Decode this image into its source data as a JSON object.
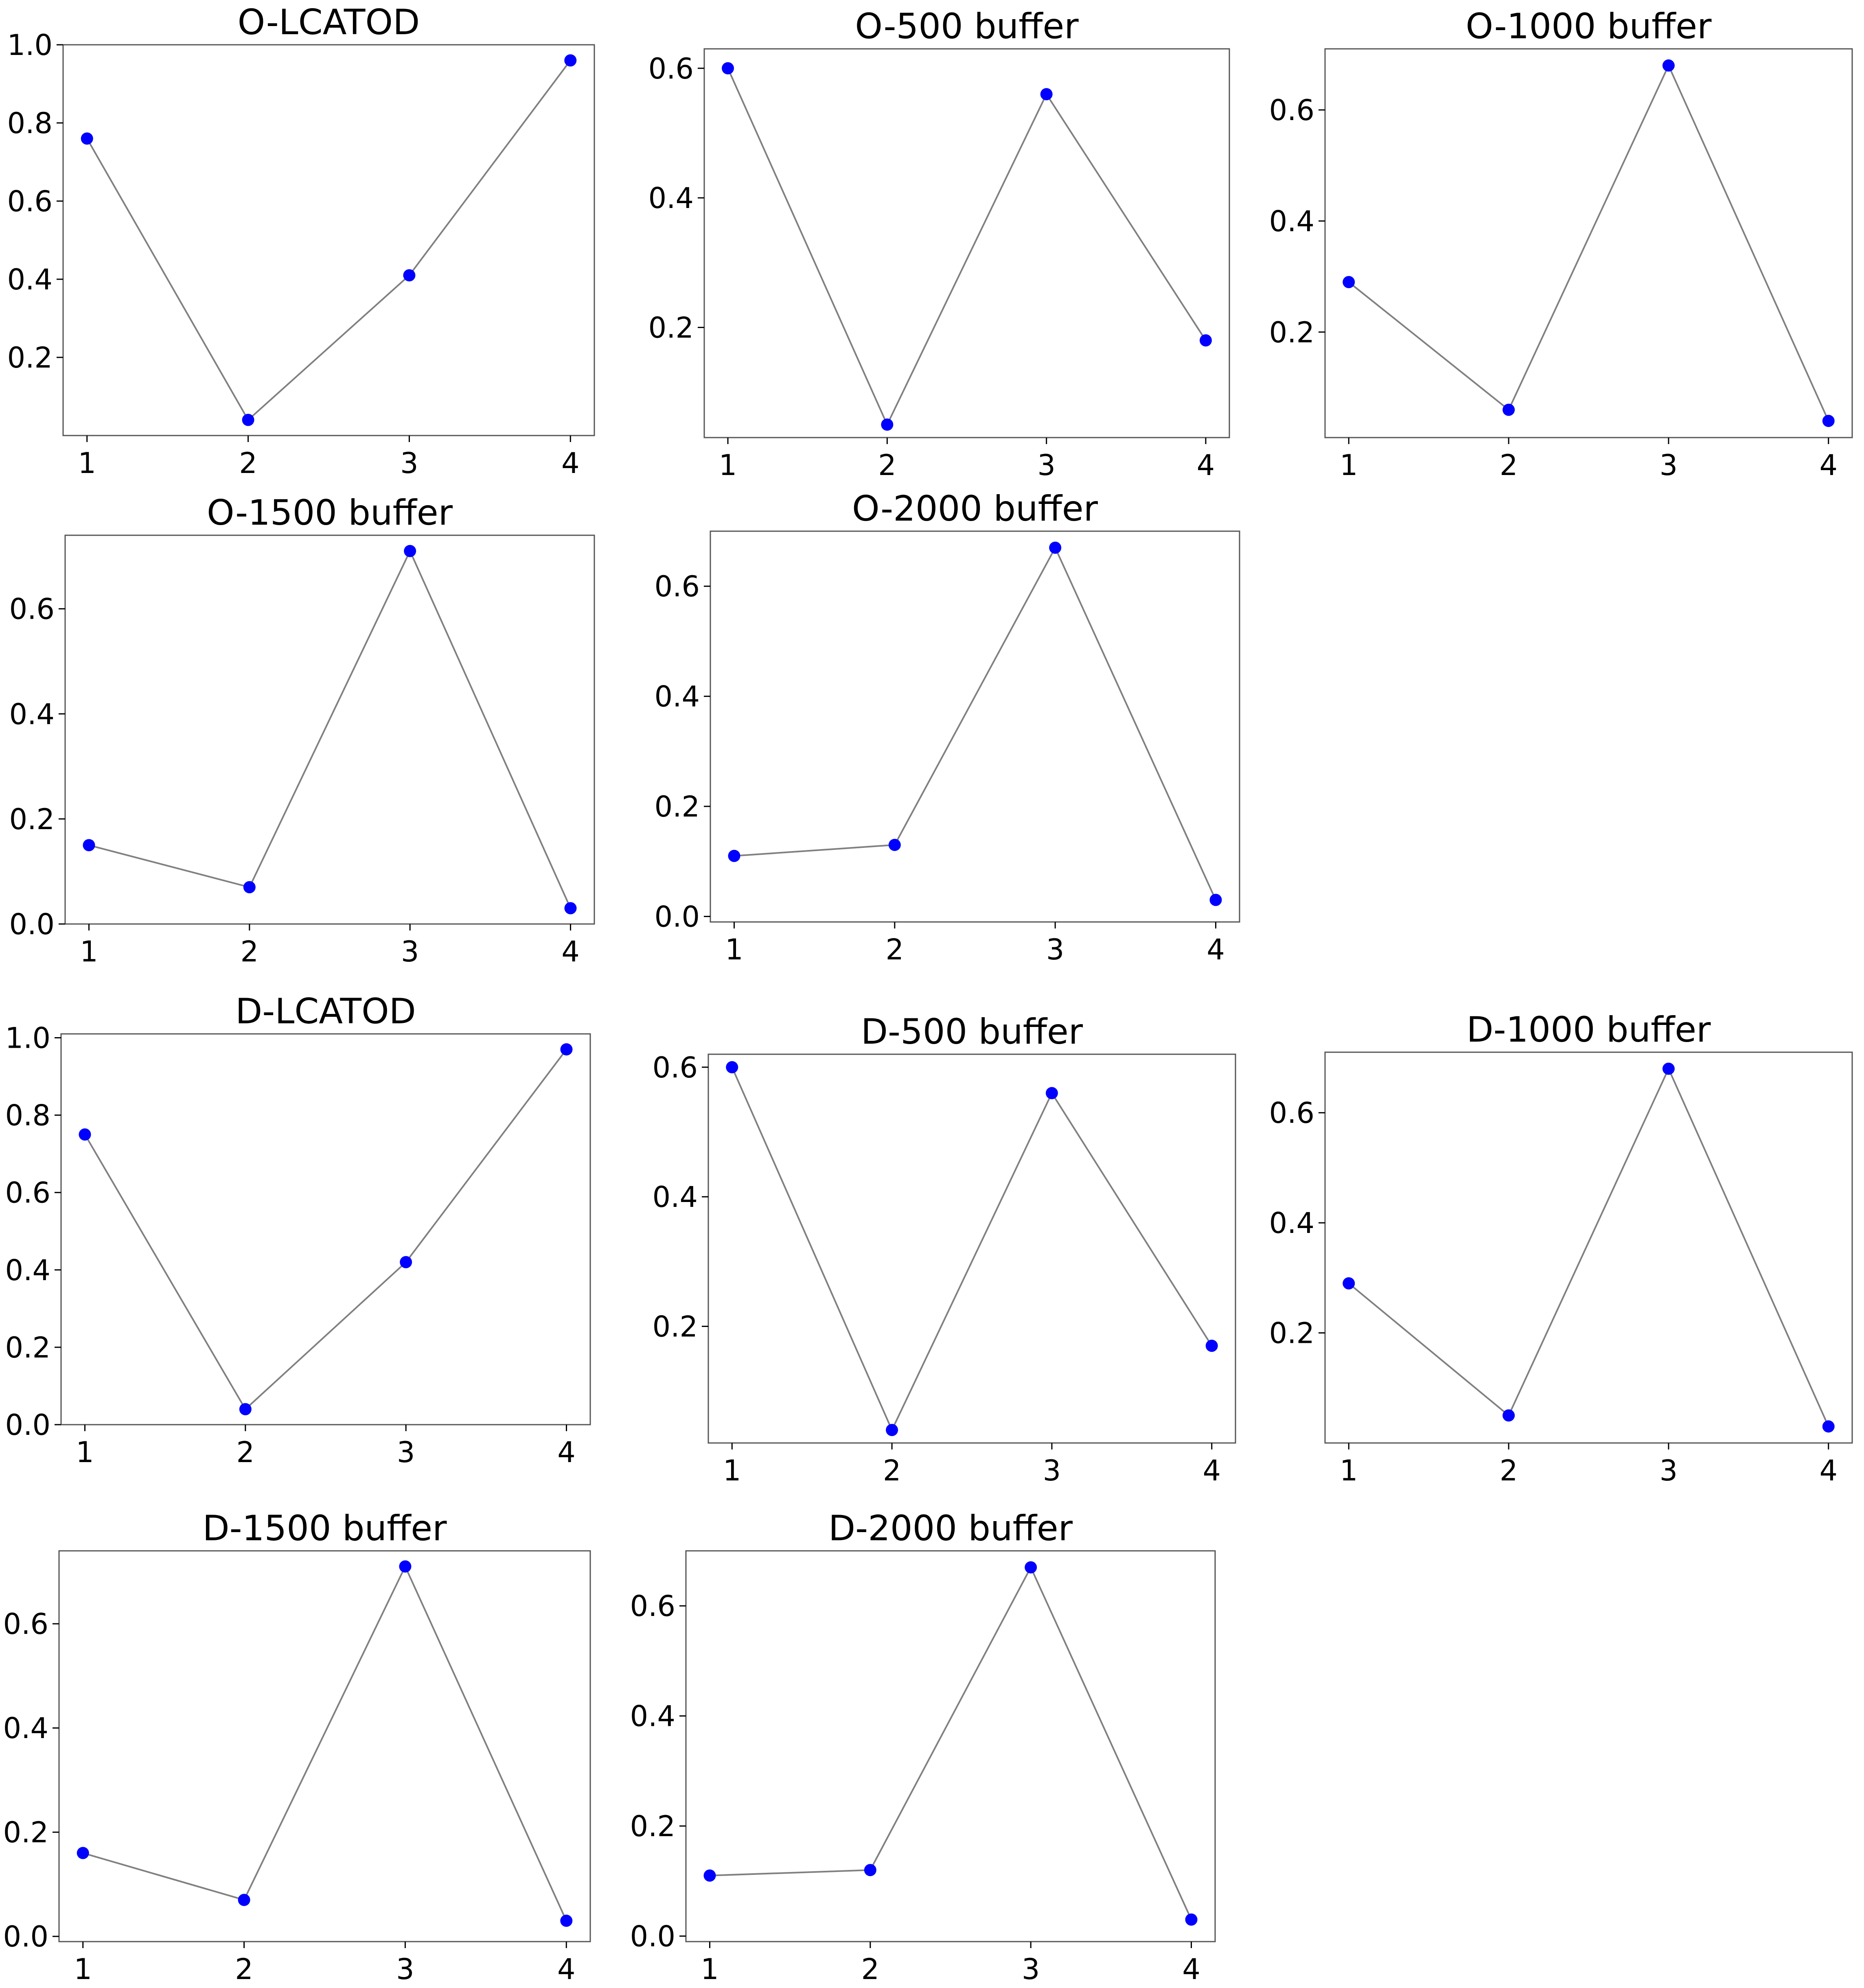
{
  "chart_data": [
    {
      "type": "line",
      "title": "O-LCATOD",
      "categories": [
        "1",
        "2",
        "3",
        "4"
      ],
      "values": [
        0.76,
        0.04,
        0.41,
        0.96
      ],
      "ylim": [
        0.0,
        1.0
      ],
      "yticks": [
        "1.0",
        "0.8",
        "0.6",
        "0.4",
        "0.2"
      ],
      "ytick_values": [
        1.0,
        0.8,
        0.6,
        0.4,
        0.2
      ],
      "grid": false,
      "marker_color": "#0000ff",
      "line_color": "#808080"
    },
    {
      "type": "line",
      "title": "O-500 buffer",
      "categories": [
        "1",
        "2",
        "3",
        "4"
      ],
      "values": [
        0.6,
        0.05,
        0.56,
        0.18
      ],
      "ylim": [
        0.03,
        0.63
      ],
      "yticks": [
        "0.6",
        "0.4",
        "0.2"
      ],
      "ytick_values": [
        0.6,
        0.4,
        0.2
      ],
      "grid": false,
      "marker_color": "#0000ff",
      "line_color": "#808080"
    },
    {
      "type": "line",
      "title": "O-1000 buffer",
      "categories": [
        "1",
        "2",
        "3",
        "4"
      ],
      "values": [
        0.29,
        0.06,
        0.68,
        0.04
      ],
      "ylim": [
        0.01,
        0.71
      ],
      "yticks": [
        "0.6",
        "0.4",
        "0.2"
      ],
      "ytick_values": [
        0.6,
        0.4,
        0.2
      ],
      "grid": false,
      "marker_color": "#0000ff",
      "line_color": "#808080"
    },
    {
      "type": "line",
      "title": "O-1500 buffer",
      "categories": [
        "1",
        "2",
        "3",
        "4"
      ],
      "values": [
        0.15,
        0.07,
        0.71,
        0.03
      ],
      "ylim": [
        0.0,
        0.74
      ],
      "yticks": [
        "0.6",
        "0.4",
        "0.2",
        "0.0"
      ],
      "ytick_values": [
        0.6,
        0.4,
        0.2,
        0.0
      ],
      "grid": false,
      "marker_color": "#0000ff",
      "line_color": "#808080"
    },
    {
      "type": "line",
      "title": "O-2000 buffer",
      "categories": [
        "1",
        "2",
        "3",
        "4"
      ],
      "values": [
        0.11,
        0.13,
        0.67,
        0.03
      ],
      "ylim": [
        -0.01,
        0.7
      ],
      "yticks": [
        "0.6",
        "0.4",
        "0.2",
        "0.0"
      ],
      "ytick_values": [
        0.6,
        0.4,
        0.2,
        0.0
      ],
      "grid": false,
      "marker_color": "#0000ff",
      "line_color": "#808080"
    },
    {
      "type": "line",
      "title": "D-LCATOD",
      "categories": [
        "1",
        "2",
        "3",
        "4"
      ],
      "values": [
        0.75,
        0.04,
        0.42,
        0.97
      ],
      "ylim": [
        0.0,
        1.01
      ],
      "yticks": [
        "1.0",
        "0.8",
        "0.6",
        "0.4",
        "0.2",
        "0.0"
      ],
      "ytick_values": [
        1.0,
        0.8,
        0.6,
        0.4,
        0.2,
        0.0
      ],
      "grid": false,
      "marker_color": "#0000ff",
      "line_color": "#808080"
    },
    {
      "type": "line",
      "title": "D-500 buffer",
      "categories": [
        "1",
        "2",
        "3",
        "4"
      ],
      "values": [
        0.6,
        0.04,
        0.56,
        0.17
      ],
      "ylim": [
        0.02,
        0.62
      ],
      "yticks": [
        "0.6",
        "0.4",
        "0.2"
      ],
      "ytick_values": [
        0.6,
        0.4,
        0.2
      ],
      "grid": false,
      "marker_color": "#0000ff",
      "line_color": "#808080"
    },
    {
      "type": "line",
      "title": "D-1000 buffer",
      "categories": [
        "1",
        "2",
        "3",
        "4"
      ],
      "values": [
        0.29,
        0.05,
        0.68,
        0.03
      ],
      "ylim": [
        0.0,
        0.71
      ],
      "yticks": [
        "0.6",
        "0.4",
        "0.2"
      ],
      "ytick_values": [
        0.6,
        0.4,
        0.2
      ],
      "grid": false,
      "marker_color": "#0000ff",
      "line_color": "#808080"
    },
    {
      "type": "line",
      "title": "D-1500 buffer",
      "categories": [
        "1",
        "2",
        "3",
        "4"
      ],
      "values": [
        0.16,
        0.07,
        0.71,
        0.03
      ],
      "ylim": [
        -0.01,
        0.74
      ],
      "yticks": [
        "0.6",
        "0.4",
        "0.2",
        "0.0"
      ],
      "ytick_values": [
        0.6,
        0.4,
        0.2,
        0.0
      ],
      "grid": false,
      "marker_color": "#0000ff",
      "line_color": "#808080"
    },
    {
      "type": "line",
      "title": "D-2000 buffer",
      "categories": [
        "1",
        "2",
        "3",
        "4"
      ],
      "values": [
        0.11,
        0.12,
        0.67,
        0.03
      ],
      "ylim": [
        -0.01,
        0.7
      ],
      "yticks": [
        "0.6",
        "0.4",
        "0.2",
        "0.0"
      ],
      "ytick_values": [
        0.6,
        0.4,
        0.2,
        0.0
      ],
      "grid": false,
      "marker_color": "#0000ff",
      "line_color": "#808080"
    }
  ]
}
